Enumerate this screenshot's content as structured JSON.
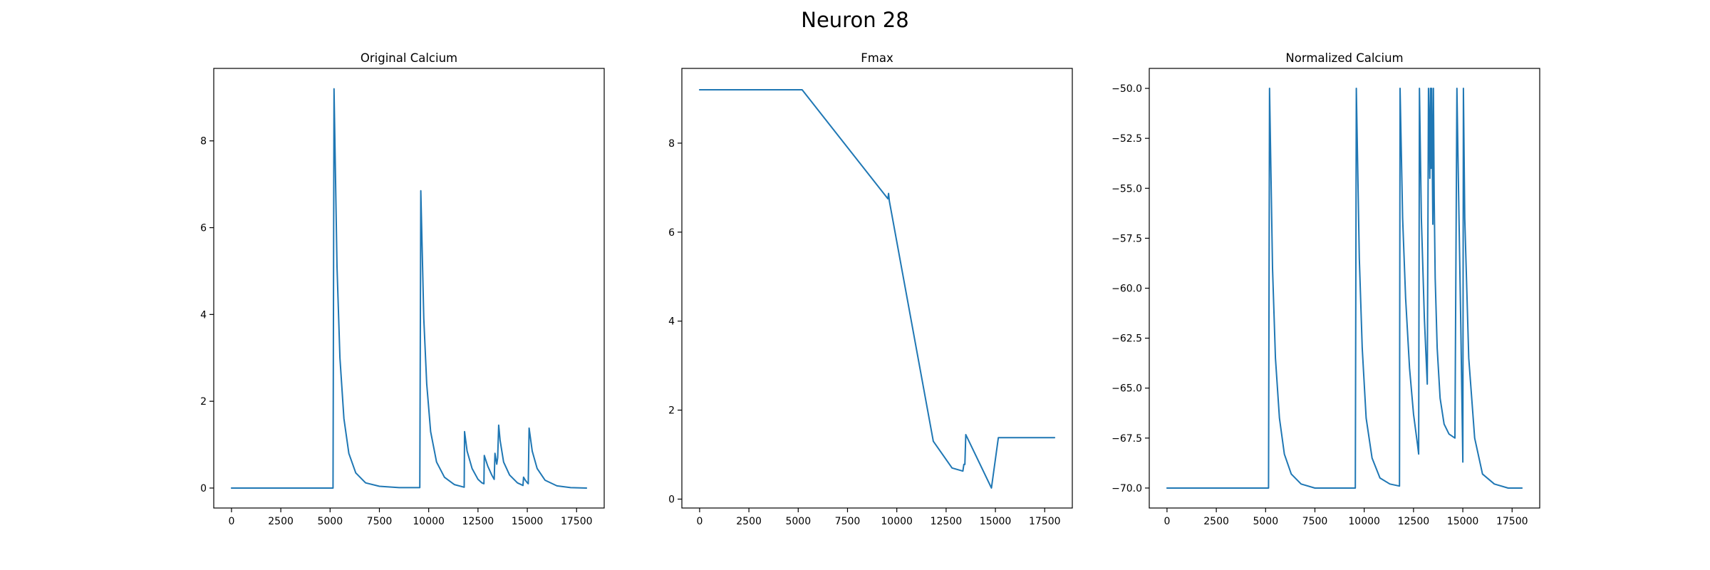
{
  "figure": {
    "suptitle": "Neuron 28",
    "line_color": "#1f77b4"
  },
  "chart_data": [
    {
      "type": "line",
      "title": "Original Calcium",
      "xlabel": "",
      "ylabel": "",
      "xlim": [
        -900,
        18900
      ],
      "ylim": [
        -0.46,
        9.67
      ],
      "xticks": [
        0,
        2500,
        5000,
        7500,
        10000,
        12500,
        15000,
        17500
      ],
      "xtick_labels": [
        "0",
        "2500",
        "5000",
        "7500",
        "10000",
        "12500",
        "15000",
        "17500"
      ],
      "yticks": [
        0,
        2,
        4,
        6,
        8
      ],
      "ytick_labels": [
        "0",
        "2",
        "4",
        "6",
        "8"
      ],
      "grid": false,
      "series": [
        {
          "x": [
            0,
            5150,
            5200,
            5350,
            5500,
            5700,
            5950,
            6300,
            6800,
            7500,
            8500,
            9550,
            9600,
            9750,
            9900,
            10100,
            10400,
            10800,
            11300,
            11800,
            11820,
            11950,
            12200,
            12500,
            12700,
            12800,
            12820,
            13000,
            13200,
            13320,
            13360,
            13450,
            13500,
            13550,
            13620,
            13800,
            14100,
            14500,
            14780,
            14810,
            14900,
            15000,
            15050,
            15090,
            15250,
            15500,
            15900,
            16500,
            17200,
            18000
          ],
          "y": [
            0,
            0,
            9.2,
            5.1,
            3.0,
            1.6,
            0.8,
            0.35,
            0.12,
            0.04,
            0.01,
            0.01,
            6.85,
            3.9,
            2.4,
            1.3,
            0.6,
            0.25,
            0.08,
            0.02,
            1.3,
            0.85,
            0.45,
            0.2,
            0.12,
            0.1,
            0.75,
            0.5,
            0.3,
            0.2,
            0.8,
            0.55,
            0.7,
            1.45,
            1.1,
            0.6,
            0.3,
            0.12,
            0.06,
            0.25,
            0.18,
            0.12,
            0.1,
            1.38,
            0.85,
            0.45,
            0.18,
            0.05,
            0.01,
            0.0
          ]
        }
      ]
    },
    {
      "type": "line",
      "title": "Fmax",
      "xlabel": "",
      "ylabel": "",
      "xlim": [
        -900,
        18900
      ],
      "ylim": [
        -0.2,
        9.68
      ],
      "xticks": [
        0,
        2500,
        5000,
        7500,
        10000,
        12500,
        15000,
        17500
      ],
      "xtick_labels": [
        "0",
        "2500",
        "5000",
        "7500",
        "10000",
        "12500",
        "15000",
        "17500"
      ],
      "yticks": [
        0,
        2,
        4,
        6,
        8
      ],
      "ytick_labels": [
        "0",
        "2",
        "4",
        "6",
        "8"
      ],
      "grid": false,
      "series": [
        {
          "x": [
            0,
            5200,
            9550,
            9580,
            9620,
            11850,
            12800,
            13350,
            13400,
            13450,
            13500,
            14800,
            15150,
            16000,
            18000
          ],
          "y": [
            9.2,
            9.2,
            6.75,
            6.87,
            6.7,
            1.3,
            0.7,
            0.63,
            0.78,
            0.78,
            1.45,
            0.25,
            1.38,
            1.38,
            1.38
          ]
        }
      ]
    },
    {
      "type": "line",
      "title": "Normalized Calcium",
      "xlabel": "",
      "ylabel": "",
      "xlim": [
        -900,
        18900
      ],
      "ylim": [
        -71.0,
        -49.0
      ],
      "xticks": [
        0,
        2500,
        5000,
        7500,
        10000,
        12500,
        15000,
        17500
      ],
      "xtick_labels": [
        "0",
        "2500",
        "5000",
        "7500",
        "10000",
        "12500",
        "15000",
        "17500"
      ],
      "yticks": [
        -50.0,
        -52.5,
        -55.0,
        -57.5,
        -60.0,
        -62.5,
        -65.0,
        -67.5,
        -70.0
      ],
      "ytick_labels": [
        "−50.0",
        "−52.5",
        "−55.0",
        "−57.5",
        "−60.0",
        "−62.5",
        "−65.0",
        "−67.5",
        "−70.0"
      ],
      "grid": false,
      "series": [
        {
          "x": [
            0,
            5150,
            5200,
            5350,
            5500,
            5700,
            5950,
            6300,
            6800,
            7500,
            8500,
            9550,
            9600,
            9750,
            9900,
            10100,
            10400,
            10800,
            11300,
            11790,
            11820,
            11950,
            12100,
            12300,
            12500,
            12700,
            12760,
            12800,
            12900,
            13050,
            13200,
            13260,
            13300,
            13330,
            13360,
            13390,
            13420,
            13450,
            13480,
            13510,
            13550,
            13600,
            13700,
            13850,
            14050,
            14300,
            14600,
            14700,
            14750,
            14900,
            15000,
            15030,
            15100,
            15300,
            15600,
            16000,
            16600,
            17300,
            18000
          ],
          "y": [
            -70,
            -70,
            -50,
            -59,
            -63.5,
            -66.5,
            -68.3,
            -69.3,
            -69.8,
            -70,
            -70,
            -70,
            -50,
            -58.5,
            -63,
            -66.5,
            -68.5,
            -69.5,
            -69.8,
            -69.9,
            -50,
            -56.5,
            -60.5,
            -64,
            -66.3,
            -67.8,
            -68.3,
            -50,
            -56.5,
            -61.5,
            -64.8,
            -50,
            -52,
            -54.5,
            -50,
            -54,
            -50,
            -53.5,
            -56.8,
            -50,
            -55.5,
            -59.5,
            -63,
            -65.5,
            -66.8,
            -67.3,
            -67.5,
            -50,
            -53,
            -62,
            -68.7,
            -50,
            -56.5,
            -63.5,
            -67.5,
            -69.3,
            -69.8,
            -70,
            -70
          ]
        }
      ]
    }
  ]
}
